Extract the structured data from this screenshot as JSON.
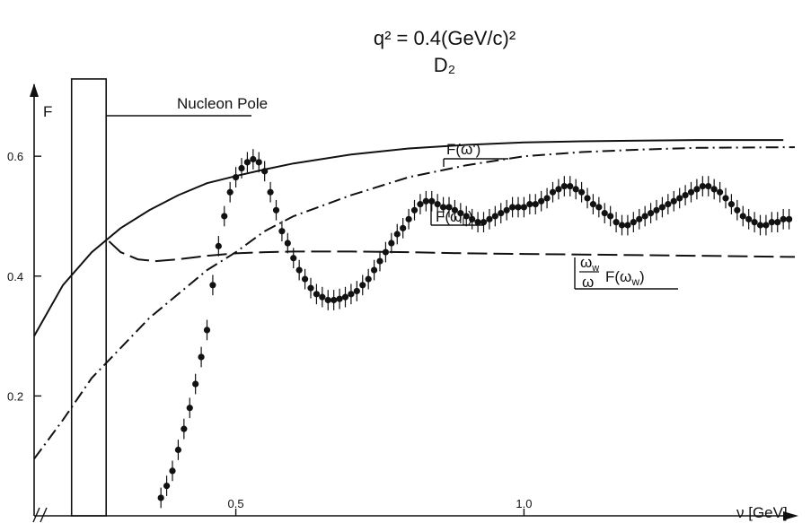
{
  "header": {
    "title_line1": "q² = 0.4(GeV/c)²",
    "title_line2": "D₂"
  },
  "chart_data": {
    "type": "line",
    "title": "q² = 0.4(GeV/c)²",
    "subtitle": "D₂",
    "xlabel": "ν [GeV]",
    "ylabel": "F",
    "xlim": [
      0.15,
      1.47
    ],
    "ylim": [
      0.0,
      0.72
    ],
    "x_ticks": [
      {
        "value": 0.5,
        "label": "0.5"
      },
      {
        "value": 1.0,
        "label": "1.0"
      }
    ],
    "y_ticks": [
      {
        "value": 0.2,
        "label": "0.2"
      },
      {
        "value": 0.4,
        "label": "0.4"
      },
      {
        "value": 0.6,
        "label": "0.6"
      }
    ],
    "grid": false,
    "axis_break_mark": "//",
    "nucleon_pole": {
      "label": "Nucleon Pole",
      "x_range": [
        0.215,
        0.275
      ]
    },
    "series": [
      {
        "name": "F(ω')",
        "style": "solid",
        "x": [
          0.15,
          0.2,
          0.25,
          0.3,
          0.35,
          0.4,
          0.45,
          0.5,
          0.55,
          0.6,
          0.7,
          0.8,
          0.9,
          1.0,
          1.1,
          1.2,
          1.3,
          1.45
        ],
        "y": [
          0.3,
          0.385,
          0.44,
          0.48,
          0.51,
          0.535,
          0.555,
          0.567,
          0.578,
          0.588,
          0.603,
          0.613,
          0.619,
          0.623,
          0.625,
          0.626,
          0.627,
          0.627
        ]
      },
      {
        "name": "F(ω_L)",
        "style": "dash-dot",
        "x": [
          0.15,
          0.2,
          0.25,
          0.3,
          0.35,
          0.4,
          0.45,
          0.5,
          0.55,
          0.6,
          0.7,
          0.8,
          0.9,
          1.0,
          1.1,
          1.2,
          1.3,
          1.47
        ],
        "y": [
          0.095,
          0.16,
          0.23,
          0.28,
          0.33,
          0.37,
          0.41,
          0.44,
          0.475,
          0.5,
          0.535,
          0.565,
          0.585,
          0.6,
          0.607,
          0.611,
          0.614,
          0.615
        ]
      },
      {
        "name": "ω_w/ω F(ω_w)",
        "style": "dashed",
        "x": [
          0.28,
          0.3,
          0.33,
          0.36,
          0.4,
          0.45,
          0.5,
          0.55,
          0.6,
          0.7,
          0.8,
          0.9,
          1.0,
          1.1,
          1.2,
          1.3,
          1.47
        ],
        "y": [
          0.458,
          0.44,
          0.428,
          0.425,
          0.428,
          0.434,
          0.438,
          0.44,
          0.441,
          0.441,
          0.44,
          0.438,
          0.437,
          0.436,
          0.435,
          0.434,
          0.432
        ]
      },
      {
        "name": "data",
        "style": "points-with-error-bars",
        "x": [
          0.37,
          0.38,
          0.39,
          0.4,
          0.41,
          0.42,
          0.43,
          0.44,
          0.45,
          0.46,
          0.47,
          0.48,
          0.49,
          0.5,
          0.51,
          0.52,
          0.53,
          0.54,
          0.55,
          0.56,
          0.57,
          0.58,
          0.59,
          0.6,
          0.61,
          0.62,
          0.63,
          0.64,
          0.65,
          0.66,
          0.67,
          0.68,
          0.69,
          0.7,
          0.71,
          0.72,
          0.73,
          0.74,
          0.75,
          0.76,
          0.77,
          0.78,
          0.79,
          0.8,
          0.81,
          0.82,
          0.83,
          0.84,
          0.85,
          0.86,
          0.87,
          0.88,
          0.89,
          0.9,
          0.91,
          0.92,
          0.93,
          0.94,
          0.95,
          0.96,
          0.97,
          0.98,
          0.99,
          1.0,
          1.01,
          1.02,
          1.03,
          1.04,
          1.05,
          1.06,
          1.07,
          1.08,
          1.09,
          1.1,
          1.11,
          1.12,
          1.13,
          1.14,
          1.15,
          1.16,
          1.17,
          1.18,
          1.19,
          1.2,
          1.21,
          1.22,
          1.23,
          1.24,
          1.25,
          1.26,
          1.27,
          1.28,
          1.29,
          1.3,
          1.31,
          1.32,
          1.33,
          1.34,
          1.35,
          1.36,
          1.37,
          1.38,
          1.39,
          1.4,
          1.41,
          1.42,
          1.43,
          1.44,
          1.45,
          1.46
        ],
        "y": [
          0.03,
          0.05,
          0.075,
          0.11,
          0.145,
          0.18,
          0.22,
          0.265,
          0.31,
          0.385,
          0.45,
          0.5,
          0.54,
          0.565,
          0.58,
          0.59,
          0.595,
          0.59,
          0.575,
          0.54,
          0.51,
          0.475,
          0.455,
          0.43,
          0.41,
          0.395,
          0.38,
          0.37,
          0.365,
          0.36,
          0.36,
          0.362,
          0.365,
          0.37,
          0.375,
          0.385,
          0.395,
          0.41,
          0.425,
          0.44,
          0.455,
          0.47,
          0.48,
          0.495,
          0.51,
          0.52,
          0.525,
          0.525,
          0.52,
          0.515,
          0.515,
          0.51,
          0.505,
          0.5,
          0.495,
          0.49,
          0.49,
          0.495,
          0.5,
          0.505,
          0.51,
          0.515,
          0.515,
          0.515,
          0.52,
          0.52,
          0.525,
          0.53,
          0.54,
          0.545,
          0.55,
          0.55,
          0.545,
          0.54,
          0.53,
          0.52,
          0.515,
          0.505,
          0.5,
          0.49,
          0.485,
          0.485,
          0.49,
          0.495,
          0.5,
          0.505,
          0.51,
          0.515,
          0.52,
          0.525,
          0.53,
          0.535,
          0.54,
          0.545,
          0.55,
          0.55,
          0.545,
          0.54,
          0.53,
          0.52,
          0.51,
          0.5,
          0.495,
          0.49,
          0.485,
          0.485,
          0.49,
          0.49,
          0.495,
          0.495
        ],
        "err": 0.017
      }
    ],
    "annotations": [
      "Nucleon Pole",
      "F(ω')",
      "F(ω_L)",
      "ω_w/ω F(ω_w)"
    ]
  }
}
